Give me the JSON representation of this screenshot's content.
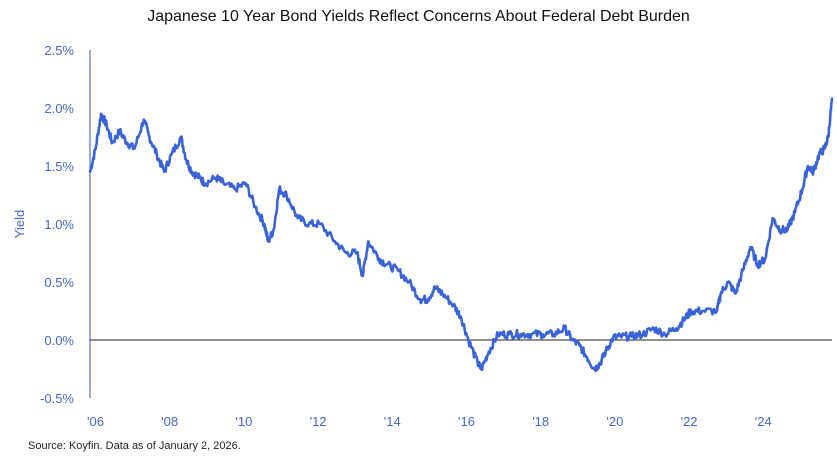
{
  "title": "Japanese 10 Year Bond Yields Reflect Concerns About Federal Debt Burden",
  "source": "Source: Koyfin. Data as of January 2, 2026.",
  "colors": {
    "line": "#3b63d8",
    "axis_text": "#4466cc",
    "axis": "#3355bb",
    "zero_line": "#222222"
  },
  "chart_data": {
    "type": "line",
    "title": "Japanese 10 Year Bond Yields Reflect Concerns About Federal Debt Burden",
    "xlabel": "",
    "ylabel": "Yield",
    "ylim": [
      -0.5,
      2.5
    ],
    "xlim": [
      2006.0,
      2026.0
    ],
    "grid": false,
    "x_tick_labels": [
      "'06",
      "'08",
      "'10",
      "'12",
      "'14",
      "'16",
      "'18",
      "'20",
      "'22",
      "'24"
    ],
    "y_tick_labels": [
      "-0.5%",
      "0.0%",
      "0.5%",
      "1.0%",
      "1.5%",
      "2.0%",
      "2.5%"
    ],
    "series": [
      {
        "x": [
          2006.0,
          2006.15,
          2006.3,
          2006.45,
          2006.6,
          2006.8,
          2007.0,
          2007.2,
          2007.45,
          2007.6,
          2007.8,
          2008.0,
          2008.2,
          2008.45,
          2008.6,
          2008.75,
          2008.95,
          2009.1,
          2009.4,
          2009.6,
          2009.9,
          2010.2,
          2010.45,
          2010.7,
          2010.8,
          2010.95,
          2011.1,
          2011.3,
          2011.6,
          2011.9,
          2012.2,
          2012.6,
          2012.9,
          2013.2,
          2013.35,
          2013.5,
          2013.8,
          2014.0,
          2014.3,
          2014.6,
          2014.9,
          2015.1,
          2015.3,
          2015.5,
          2015.8,
          2016.0,
          2016.2,
          2016.45,
          2016.55,
          2016.75,
          2017.0,
          2017.3,
          2017.6,
          2017.9,
          2018.2,
          2018.5,
          2018.8,
          2019.0,
          2019.2,
          2019.4,
          2019.6,
          2019.75,
          2019.9,
          2020.1,
          2020.3,
          2020.6,
          2020.9,
          2021.2,
          2021.5,
          2021.8,
          2022.0,
          2022.2,
          2022.5,
          2022.9,
          2023.0,
          2023.2,
          2023.4,
          2023.6,
          2023.8,
          2024.0,
          2024.2,
          2024.4,
          2024.6,
          2024.8,
          2025.0,
          2025.2,
          2025.35,
          2025.5,
          2025.65,
          2025.8,
          2025.9,
          2026.0
        ],
        "values": [
          1.45,
          1.65,
          1.95,
          1.85,
          1.7,
          1.8,
          1.7,
          1.65,
          1.9,
          1.75,
          1.6,
          1.45,
          1.6,
          1.75,
          1.55,
          1.45,
          1.4,
          1.35,
          1.4,
          1.35,
          1.3,
          1.35,
          1.15,
          1.0,
          0.85,
          0.95,
          1.3,
          1.25,
          1.05,
          1.0,
          1.0,
          0.85,
          0.75,
          0.75,
          0.55,
          0.85,
          0.7,
          0.65,
          0.6,
          0.5,
          0.35,
          0.35,
          0.45,
          0.4,
          0.3,
          0.2,
          0.0,
          -0.2,
          -0.25,
          -0.1,
          0.05,
          0.05,
          0.05,
          0.05,
          0.05,
          0.05,
          0.1,
          0.0,
          -0.05,
          -0.15,
          -0.25,
          -0.2,
          -0.1,
          0.02,
          0.03,
          0.03,
          0.05,
          0.1,
          0.05,
          0.1,
          0.17,
          0.25,
          0.25,
          0.25,
          0.4,
          0.5,
          0.4,
          0.6,
          0.8,
          0.65,
          0.7,
          1.05,
          0.95,
          0.95,
          1.1,
          1.3,
          1.5,
          1.45,
          1.6,
          1.65,
          1.75,
          2.08
        ]
      }
    ]
  }
}
